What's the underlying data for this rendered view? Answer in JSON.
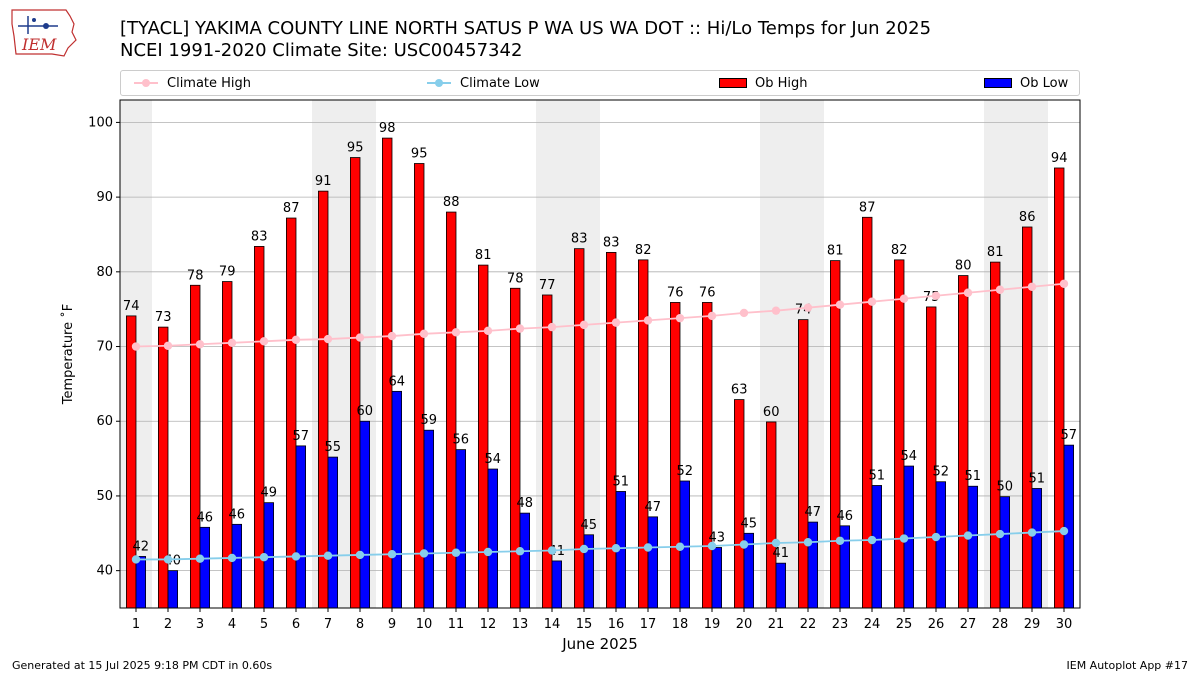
{
  "header": {
    "title_line1": "[TYACL] YAKIMA COUNTY LINE NORTH SATUS P WA US WA DOT :: Hi/Lo Temps for Jun 2025",
    "title_line2": "NCEI 1991-2020 Climate Site: USC00457342",
    "logo_text": "IEM"
  },
  "legend": {
    "climate_high": "Climate High",
    "climate_low": "Climate Low",
    "ob_high": "Ob High",
    "ob_low": "Ob Low",
    "placement": "top, above plot"
  },
  "footer": {
    "left": "Generated at 15 Jul 2025 9:18 PM CDT in 0.60s",
    "right": "IEM Autoplot App #17"
  },
  "colors": {
    "ob_high": "#ff0000",
    "ob_low": "#0000ff",
    "climate_high": "#ffc0cb",
    "climate_low": "#87ceeb",
    "weekend_shade": "#eeeeee",
    "grid": "#b0b0b0"
  },
  "chart_data": {
    "type": "bar",
    "title": "[TYACL] YAKIMA COUNTY LINE NORTH SATUS P WA US WA DOT :: Hi/Lo Temps for Jun 2025",
    "subtitle": "NCEI 1991-2020 Climate Site: USC00457342",
    "xlabel": "June 2025",
    "ylabel": "Temperature ˚F",
    "ylim": [
      35,
      103
    ],
    "yticks": [
      40,
      50,
      60,
      70,
      80,
      90,
      100
    ],
    "grid": "y-axis on",
    "categories": [
      "1",
      "2",
      "3",
      "4",
      "5",
      "6",
      "7",
      "8",
      "9",
      "10",
      "11",
      "12",
      "13",
      "14",
      "15",
      "16",
      "17",
      "18",
      "19",
      "20",
      "21",
      "22",
      "23",
      "24",
      "25",
      "26",
      "27",
      "28",
      "29",
      "30"
    ],
    "shaded_days": [
      1,
      7,
      8,
      14,
      15,
      21,
      22,
      28,
      29
    ],
    "series": [
      {
        "name": "Ob High",
        "kind": "bar",
        "values": [
          74.1,
          72.6,
          78.2,
          78.7,
          83.4,
          87.2,
          90.8,
          95.3,
          97.9,
          94.5,
          88.0,
          80.9,
          77.8,
          76.9,
          83.1,
          82.6,
          81.6,
          75.9,
          75.9,
          62.9,
          59.9,
          73.6,
          81.5,
          87.3,
          81.6,
          75.3,
          79.5,
          81.3,
          86.0,
          93.9
        ],
        "labels": [
          "74",
          "73",
          "78",
          "79",
          "83",
          "87",
          "91",
          "95",
          "98",
          "95",
          "88",
          "81",
          "78",
          "77",
          "83",
          "83",
          "82",
          "76",
          "76",
          "63",
          "60",
          "74",
          "81",
          "87",
          "82",
          "75",
          "80",
          "81",
          "86",
          "94"
        ]
      },
      {
        "name": "Ob Low",
        "kind": "bar",
        "values": [
          41.9,
          40.0,
          45.8,
          46.2,
          49.1,
          56.7,
          55.2,
          60.0,
          64.0,
          58.8,
          56.2,
          53.6,
          47.7,
          41.3,
          44.8,
          50.6,
          47.2,
          52.0,
          43.1,
          45.0,
          41.0,
          46.5,
          46.0,
          51.4,
          54.0,
          51.9,
          51.3,
          49.9,
          51.0,
          56.8
        ],
        "labels": [
          "42",
          "40",
          "46",
          "46",
          "49",
          "57",
          "55",
          "60",
          "64",
          "59",
          "56",
          "54",
          "48",
          "41",
          "45",
          "51",
          "47",
          "52",
          "43",
          "45",
          "41",
          "47",
          "46",
          "51",
          "54",
          "52",
          "51",
          "50",
          "51",
          "57"
        ]
      },
      {
        "name": "Climate High",
        "kind": "line",
        "values": [
          70.0,
          70.1,
          70.3,
          70.5,
          70.7,
          70.9,
          71.0,
          71.2,
          71.4,
          71.7,
          71.9,
          72.1,
          72.4,
          72.6,
          72.9,
          73.2,
          73.5,
          73.8,
          74.1,
          74.5,
          74.8,
          75.2,
          75.6,
          76.0,
          76.4,
          76.8,
          77.2,
          77.6,
          78.0,
          78.4
        ]
      },
      {
        "name": "Climate Low",
        "kind": "line",
        "values": [
          41.5,
          41.5,
          41.6,
          41.7,
          41.8,
          41.9,
          42.0,
          42.1,
          42.2,
          42.3,
          42.4,
          42.5,
          42.6,
          42.7,
          42.9,
          43.0,
          43.1,
          43.2,
          43.3,
          43.5,
          43.7,
          43.8,
          44.0,
          44.1,
          44.3,
          44.5,
          44.7,
          44.9,
          45.1,
          45.3
        ]
      }
    ]
  }
}
